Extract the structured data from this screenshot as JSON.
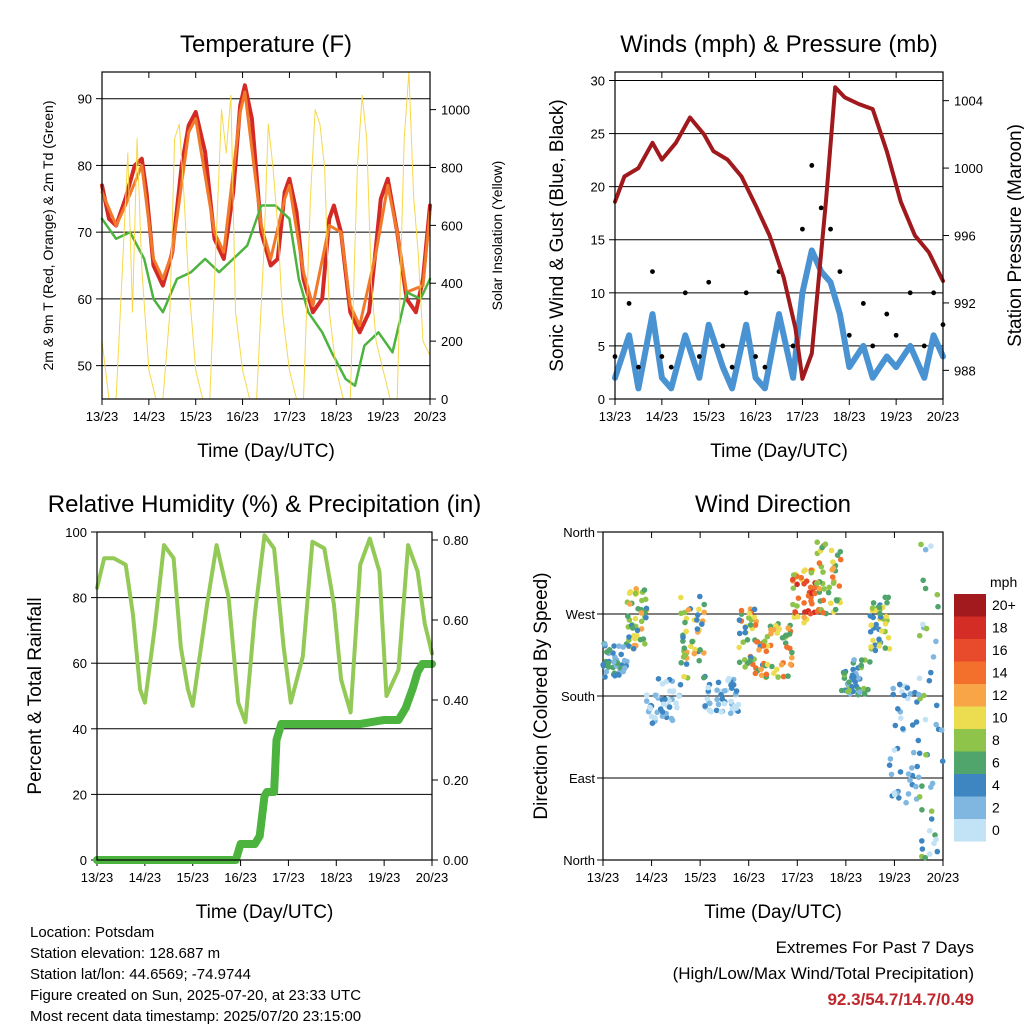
{
  "chart_data": [
    {
      "type": "line",
      "title": "Temperature (F)",
      "xlabel": "Time (Day/UTC)",
      "ylabel": "2m & 9m T (Red, Orange) & 2m Td (Green)",
      "y2label": "Solar Insolation (Yellow)",
      "x_ticks": [
        "13/23",
        "14/23",
        "15/23",
        "16/23",
        "17/23",
        "18/23",
        "19/23",
        "20/23"
      ],
      "y_ticks": [
        50,
        60,
        70,
        80,
        90
      ],
      "y2_ticks": [
        0,
        200,
        400,
        600,
        800,
        1000
      ],
      "ylim": [
        45,
        94
      ],
      "y2lim": [
        0,
        1130
      ],
      "colors": {
        "t2m": "#d42a26",
        "t9m": "#f07a2a",
        "td": "#4cb33f",
        "solar": "#f6d84a"
      },
      "series": [
        {
          "name": "2m T",
          "key": "t2m",
          "x": [
            0,
            0.15,
            0.3,
            0.5,
            0.7,
            0.85,
            0.95,
            1.1,
            1.3,
            1.5,
            1.7,
            1.85,
            2.0,
            2.2,
            2.4,
            2.6,
            2.8,
            2.95,
            3.05,
            3.2,
            3.4,
            3.6,
            3.75,
            3.9,
            4.0,
            4.15,
            4.3,
            4.5,
            4.7,
            4.85,
            4.95,
            5.1,
            5.3,
            5.5,
            5.7,
            5.85,
            5.95,
            6.1,
            6.3,
            6.5,
            6.7,
            6.85,
            7.0
          ],
          "values": [
            77,
            72,
            71,
            75,
            80,
            81,
            76,
            65,
            62,
            67,
            80,
            86,
            88,
            82,
            69,
            66,
            76,
            89,
            92,
            87,
            70,
            65,
            66,
            76,
            78,
            73,
            63,
            58,
            60,
            72,
            74,
            70,
            58,
            55,
            58,
            68,
            75,
            78,
            70,
            60,
            58,
            63,
            74
          ]
        },
        {
          "name": "9m T",
          "key": "t9m",
          "x": [
            0,
            0.3,
            0.5,
            0.85,
            1.1,
            1.3,
            1.5,
            1.85,
            2.0,
            2.4,
            2.6,
            2.95,
            3.05,
            3.4,
            3.6,
            3.9,
            4.0,
            4.3,
            4.5,
            4.85,
            5.1,
            5.3,
            5.5,
            5.85,
            6.1,
            6.3,
            6.5,
            6.85,
            7.0
          ],
          "values": [
            76,
            71,
            74,
            80,
            66,
            63,
            67,
            85,
            87,
            70,
            67,
            88,
            91,
            71,
            66,
            75,
            77,
            64,
            59,
            71,
            70,
            59,
            56,
            67,
            77,
            70,
            61,
            62,
            73
          ]
        },
        {
          "name": "2m Td",
          "key": "td",
          "x": [
            0,
            0.3,
            0.6,
            0.9,
            1.1,
            1.3,
            1.6,
            1.9,
            2.2,
            2.5,
            2.8,
            3.1,
            3.4,
            3.7,
            4.0,
            4.2,
            4.4,
            4.7,
            4.9,
            5.2,
            5.4,
            5.6,
            5.9,
            6.2,
            6.5,
            6.8,
            7.0
          ],
          "values": [
            72,
            69,
            70,
            66,
            60,
            58,
            63,
            64,
            66,
            64,
            66,
            68,
            74,
            74,
            72,
            63,
            58,
            55,
            52,
            48,
            47,
            53,
            55,
            52,
            61,
            60,
            63
          ]
        },
        {
          "name": "Solar Insolation",
          "key": "solar",
          "axis": "y2",
          "x": [
            0,
            0.15,
            0.3,
            0.45,
            0.55,
            0.65,
            0.75,
            0.85,
            1.0,
            1.15,
            1.3,
            1.45,
            1.55,
            1.65,
            1.75,
            1.85,
            2.0,
            2.15,
            2.3,
            2.45,
            2.55,
            2.65,
            2.75,
            2.85,
            3.0,
            3.15,
            3.3,
            3.45,
            3.55,
            3.65,
            3.75,
            3.85,
            4.0,
            4.15,
            4.3,
            4.45,
            4.55,
            4.65,
            4.75,
            4.85,
            5.0,
            5.15,
            5.3,
            5.45,
            5.55,
            5.65,
            5.75,
            5.85,
            6.0,
            6.15,
            6.3,
            6.45,
            6.55,
            6.65,
            6.75,
            6.85,
            7.0
          ],
          "values": [
            200,
            0,
            0,
            500,
            850,
            300,
            900,
            450,
            100,
            0,
            0,
            300,
            900,
            950,
            700,
            400,
            100,
            0,
            0,
            600,
            1000,
            850,
            1050,
            300,
            100,
            0,
            0,
            500,
            950,
            800,
            600,
            300,
            100,
            0,
            0,
            700,
            1000,
            950,
            800,
            300,
            100,
            0,
            0,
            800,
            1050,
            900,
            400,
            200,
            100,
            0,
            0,
            900,
            1130,
            700,
            500,
            200,
            150
          ]
        }
      ]
    },
    {
      "type": "line",
      "title": "Winds (mph) & Pressure (mb)",
      "xlabel": "Time (Day/UTC)",
      "ylabel": "Sonic Wind & Gust (Blue, Black)",
      "y2label": "Station Pressure (Maroon)",
      "x_ticks": [
        "13/23",
        "14/23",
        "15/23",
        "16/23",
        "17/23",
        "18/23",
        "19/23",
        "20/23"
      ],
      "y_ticks": [
        0,
        5,
        10,
        15,
        20,
        25,
        30
      ],
      "y2_ticks": [
        988,
        992,
        996,
        1000,
        1004
      ],
      "ylim": [
        0,
        30.8
      ],
      "y2lim": [
        986.3,
        1005.7
      ],
      "colors": {
        "wind": "#4a93d2",
        "gust": "#000000",
        "pressure": "#a0191c"
      },
      "series": [
        {
          "name": "Sonic Wind",
          "key": "wind",
          "x": [
            0,
            0.3,
            0.5,
            0.8,
            1.0,
            1.2,
            1.5,
            1.8,
            2.0,
            2.3,
            2.5,
            2.8,
            3.0,
            3.2,
            3.5,
            3.8,
            4.0,
            4.2,
            4.4,
            4.6,
            4.8,
            5.0,
            5.3,
            5.5,
            5.8,
            6.0,
            6.3,
            6.6,
            6.8,
            7.0
          ],
          "values": [
            2,
            6,
            1,
            8,
            2,
            1,
            6,
            2,
            7,
            3,
            1,
            7,
            2,
            1,
            8,
            2,
            10,
            14,
            12,
            11,
            8,
            3,
            5,
            2,
            4,
            3,
            5,
            2,
            6,
            4
          ]
        },
        {
          "name": "Gust",
          "key": "gust",
          "x": [
            0,
            0.3,
            0.5,
            0.8,
            1.0,
            1.2,
            1.5,
            1.8,
            2.0,
            2.3,
            2.5,
            2.8,
            3.0,
            3.2,
            3.5,
            3.8,
            4.0,
            4.2,
            4.4,
            4.6,
            4.8,
            5.0,
            5.3,
            5.5,
            5.8,
            6.0,
            6.3,
            6.6,
            6.8,
            7.0
          ],
          "values": [
            4,
            9,
            3,
            12,
            4,
            3,
            10,
            4,
            11,
            5,
            3,
            10,
            4,
            3,
            12,
            5,
            16,
            22,
            18,
            16,
            12,
            6,
            9,
            5,
            8,
            6,
            10,
            5,
            10,
            7
          ]
        },
        {
          "name": "Station Pressure",
          "key": "pressure",
          "axis": "y2",
          "x": [
            0,
            0.2,
            0.5,
            0.8,
            1.0,
            1.3,
            1.6,
            1.9,
            2.1,
            2.4,
            2.7,
            3.0,
            3.3,
            3.6,
            3.85,
            4.0,
            4.2,
            4.5,
            4.7,
            4.9,
            5.2,
            5.5,
            5.8,
            6.1,
            6.4,
            6.7,
            7.0
          ],
          "values": [
            998,
            999.5,
            1000,
            1001.5,
            1000.5,
            1001.5,
            1003,
            1002,
            1001,
            1000.5,
            999.5,
            997.8,
            996,
            993.5,
            990.5,
            987.5,
            989,
            998,
            1004.8,
            1004.2,
            1003.8,
            1003.5,
            1001,
            998,
            996,
            995,
            993.3
          ]
        }
      ]
    },
    {
      "type": "line",
      "title": "Relative Humidity (%) & Precipitation (in)",
      "xlabel": "Time (Day/UTC)",
      "ylabel": "Percent & Total Rainfall",
      "x_ticks": [
        "13/23",
        "14/23",
        "15/23",
        "16/23",
        "17/23",
        "18/23",
        "19/23",
        "20/23"
      ],
      "y_ticks": [
        0,
        20,
        40,
        60,
        80,
        100
      ],
      "y2_ticks": [
        "0.00",
        "0.20",
        "0.40",
        "0.60",
        "0.80"
      ],
      "ylim": [
        0,
        100
      ],
      "y2lim": [
        0,
        0.82
      ],
      "colors": {
        "rh": "#93c956",
        "precip": "#4cb33f"
      },
      "series": [
        {
          "name": "Relative Humidity",
          "key": "rh",
          "x": [
            0,
            0.15,
            0.35,
            0.6,
            0.75,
            0.9,
            1.0,
            1.2,
            1.4,
            1.6,
            1.75,
            1.9,
            2.0,
            2.3,
            2.5,
            2.75,
            2.95,
            3.1,
            3.3,
            3.5,
            3.7,
            3.9,
            4.05,
            4.3,
            4.5,
            4.75,
            4.95,
            5.1,
            5.3,
            5.5,
            5.7,
            5.9,
            6.05,
            6.3,
            6.5,
            6.7,
            6.85,
            7.0
          ],
          "values": [
            83,
            92,
            92,
            90,
            75,
            52,
            48,
            70,
            96,
            92,
            65,
            52,
            47,
            78,
            96,
            80,
            48,
            42,
            75,
            99,
            95,
            65,
            48,
            62,
            97,
            95,
            78,
            55,
            45,
            90,
            98,
            88,
            50,
            58,
            96,
            88,
            72,
            63
          ]
        },
        {
          "name": "Total Rainfall",
          "key": "precip",
          "axis": "y2",
          "x": [
            0,
            2.9,
            3.0,
            3.3,
            3.4,
            3.5,
            3.55,
            3.7,
            3.75,
            3.85,
            3.9,
            4.5,
            5.0,
            5.5,
            6.0,
            6.3,
            6.45,
            6.6,
            6.7,
            6.8,
            7.0
          ],
          "values": [
            0,
            0,
            0.04,
            0.04,
            0.06,
            0.16,
            0.17,
            0.17,
            0.3,
            0.34,
            0.34,
            0.34,
            0.34,
            0.34,
            0.35,
            0.35,
            0.38,
            0.43,
            0.47,
            0.49,
            0.49
          ]
        }
      ]
    },
    {
      "type": "scatter",
      "title": "Wind Direction",
      "xlabel": "Time (Day/UTC)",
      "ylabel": "Direction (Colored By Speed)",
      "x_ticks": [
        "13/23",
        "14/23",
        "15/23",
        "16/23",
        "17/23",
        "18/23",
        "19/23",
        "20/23"
      ],
      "y_ticks": [
        "North",
        "East",
        "South",
        "West",
        "North"
      ],
      "ylim": [
        0,
        360
      ],
      "legend": {
        "title": "mph",
        "labels": [
          "20+",
          "18",
          "16",
          "14",
          "12",
          "10",
          "8",
          "6",
          "4",
          "2",
          "0"
        ],
        "colors": [
          "#a31a1e",
          "#d32d26",
          "#e84a2c",
          "#f26f2c",
          "#f7a547",
          "#ecdd50",
          "#8ec449",
          "#4fa56b",
          "#3e86c2",
          "#7fb7e0",
          "#c2e2f5"
        ]
      },
      "points_summary": "clusters: south-southwest by day, west to northwest with stronger speeds on 17/23-18/23, scattered east to north on 19/23-20/23"
    }
  ],
  "footer": {
    "location": "Location: Potsdam",
    "elevation": "Station elevation: 128.687 m",
    "latlon": "Station lat/lon: 44.6569; -74.9744",
    "created": "Figure created on Sun, 2025-07-20, at 23:33 UTC",
    "recent": "Most recent data timestamp: 2025/07/20 23:15:00"
  },
  "extremes": {
    "line1": "Extremes For Past 7 Days",
    "line2": "(High/Low/Max Wind/Total Precipitation)",
    "values": "92.3/54.7/14.7/0.49"
  }
}
